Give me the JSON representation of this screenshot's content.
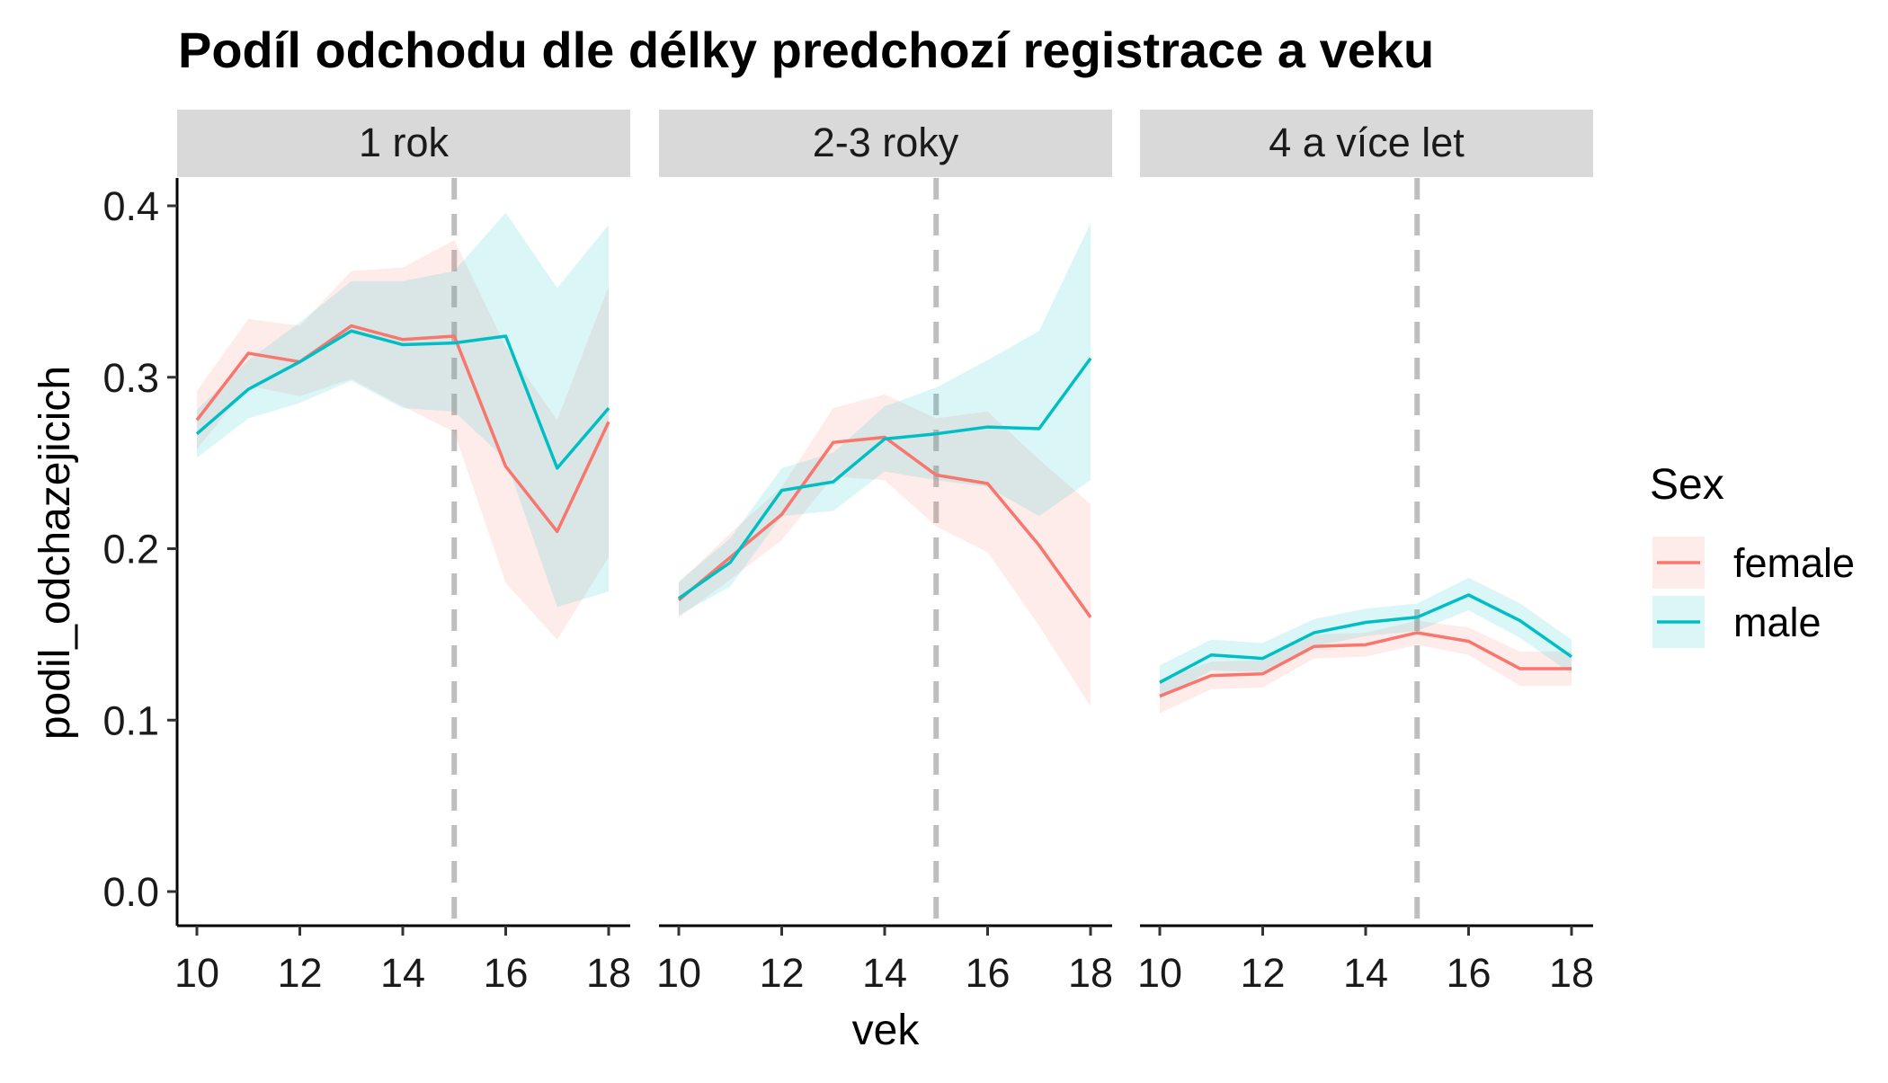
{
  "chart_data": {
    "type": "line",
    "title": "Podíl odchodu dle délky predchozí registrace a veku",
    "xlabel": "vek",
    "ylabel": "podil_odchazejicich",
    "x_ticks": [
      10,
      12,
      14,
      16,
      18
    ],
    "y_ticks": [
      0.0,
      0.1,
      0.2,
      0.3,
      0.4
    ],
    "y_tick_labels": [
      "0.0",
      "0.1",
      "0.2",
      "0.3",
      "0.4"
    ],
    "xlim": [
      10,
      18
    ],
    "ylim": [
      0.0,
      0.4
    ],
    "vline_x": 15,
    "legend": {
      "title": "Sex",
      "position": "right",
      "entries": [
        {
          "name": "female",
          "color": "#F8766D"
        },
        {
          "name": "male",
          "color": "#00BFC4"
        }
      ]
    },
    "facets": [
      {
        "label": "1 rok",
        "x": [
          10,
          11,
          12,
          13,
          14,
          15,
          16,
          17,
          18
        ],
        "series": [
          {
            "name": "female",
            "color": "#F8766D",
            "values": [
              0.275,
              0.314,
              0.309,
              0.33,
              0.322,
              0.324,
              0.248,
              0.21,
              0.274
            ],
            "lower": [
              0.258,
              0.295,
              0.289,
              0.299,
              0.283,
              0.268,
              0.18,
              0.147,
              0.195
            ],
            "upper": [
              0.292,
              0.334,
              0.33,
              0.362,
              0.364,
              0.38,
              0.318,
              0.275,
              0.353
            ]
          },
          {
            "name": "male",
            "color": "#00BFC4",
            "values": [
              0.267,
              0.293,
              0.309,
              0.327,
              0.319,
              0.32,
              0.324,
              0.247,
              0.282
            ],
            "lower": [
              0.253,
              0.276,
              0.285,
              0.298,
              0.282,
              0.28,
              0.252,
              0.166,
              0.175
            ],
            "upper": [
              0.281,
              0.31,
              0.332,
              0.356,
              0.356,
              0.362,
              0.396,
              0.352,
              0.389
            ]
          }
        ]
      },
      {
        "label": "2-3 roky",
        "x": [
          10,
          11,
          12,
          13,
          14,
          15,
          16,
          17,
          18
        ],
        "series": [
          {
            "name": "female",
            "color": "#F8766D",
            "values": [
              0.17,
              0.195,
              0.22,
              0.262,
              0.265,
              0.243,
              0.238,
              0.202,
              0.16
            ],
            "lower": [
              0.16,
              0.182,
              0.205,
              0.242,
              0.24,
              0.213,
              0.198,
              0.155,
              0.108
            ],
            "upper": [
              0.18,
              0.209,
              0.236,
              0.282,
              0.29,
              0.276,
              0.28,
              0.252,
              0.226
            ]
          },
          {
            "name": "male",
            "color": "#00BFC4",
            "values": [
              0.171,
              0.192,
              0.234,
              0.239,
              0.264,
              0.267,
              0.271,
              0.27,
              0.311
            ],
            "lower": [
              0.161,
              0.178,
              0.219,
              0.222,
              0.245,
              0.24,
              0.236,
              0.219,
              0.24
            ],
            "upper": [
              0.181,
              0.206,
              0.247,
              0.256,
              0.283,
              0.294,
              0.31,
              0.327,
              0.39
            ]
          }
        ]
      },
      {
        "label": "4 a více let",
        "x": [
          10,
          11,
          12,
          13,
          14,
          15,
          16,
          17,
          18
        ],
        "series": [
          {
            "name": "female",
            "color": "#F8766D",
            "values": [
              0.114,
              0.126,
              0.127,
              0.143,
              0.144,
              0.151,
              0.146,
              0.13,
              0.13
            ],
            "lower": [
              0.104,
              0.118,
              0.119,
              0.136,
              0.137,
              0.144,
              0.138,
              0.12,
              0.12
            ],
            "upper": [
              0.124,
              0.134,
              0.135,
              0.15,
              0.151,
              0.158,
              0.154,
              0.14,
              0.14
            ]
          },
          {
            "name": "male",
            "color": "#00BFC4",
            "values": [
              0.122,
              0.138,
              0.136,
              0.151,
              0.157,
              0.16,
              0.173,
              0.158,
              0.137
            ],
            "lower": [
              0.112,
              0.129,
              0.128,
              0.143,
              0.149,
              0.152,
              0.164,
              0.148,
              0.127
            ],
            "upper": [
              0.132,
              0.147,
              0.145,
              0.159,
              0.165,
              0.168,
              0.183,
              0.168,
              0.147
            ]
          }
        ]
      }
    ]
  }
}
